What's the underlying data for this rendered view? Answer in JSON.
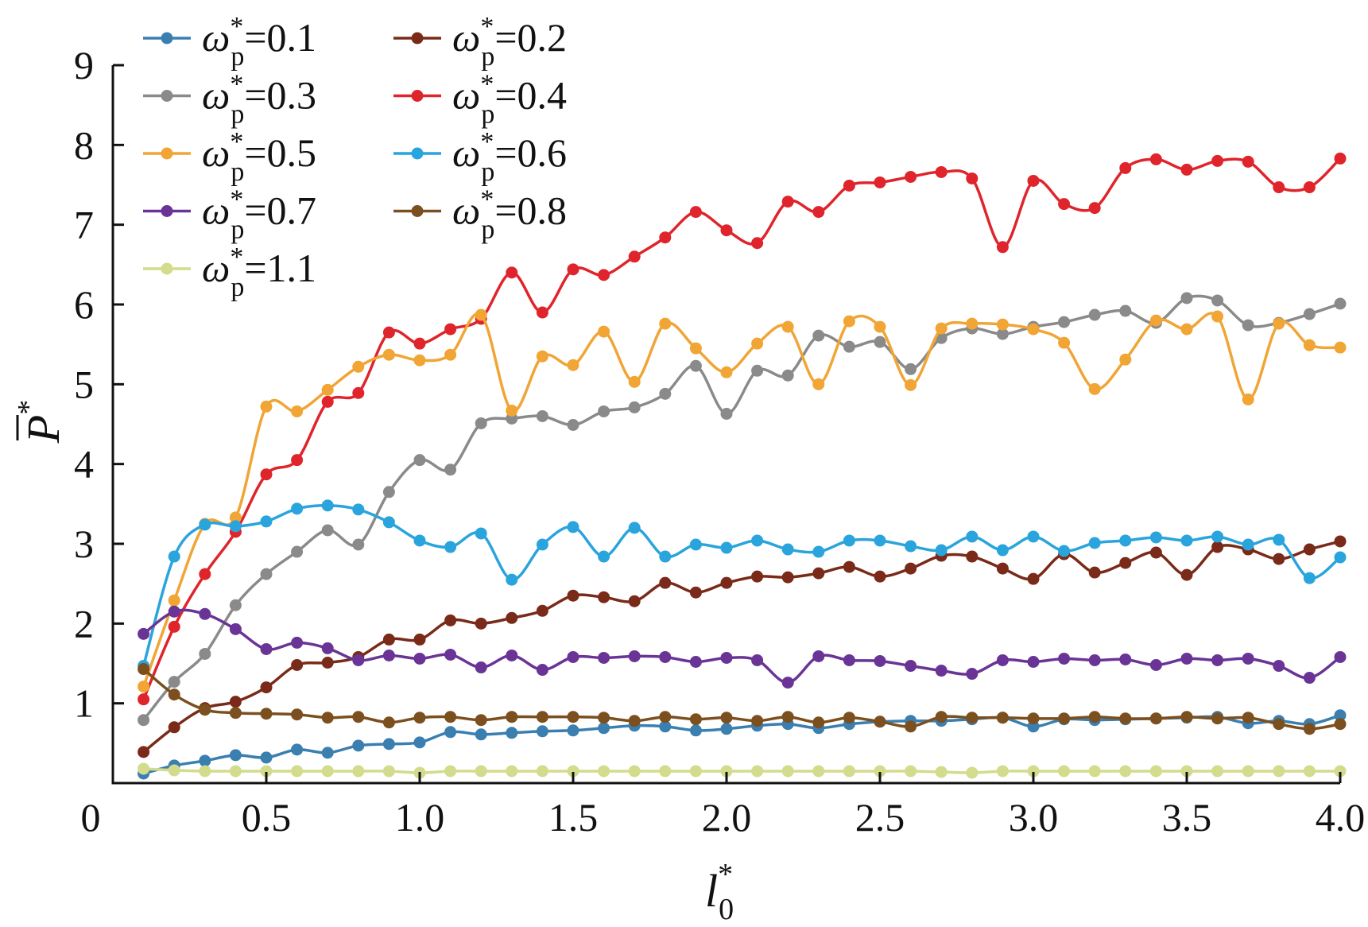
{
  "chart_data": {
    "type": "line",
    "xlabel": "l",
    "xlabel_sup": "*",
    "xlabel_sub": "0",
    "ylabel": "P",
    "ylabel_sup": "*",
    "xlim": [
      0,
      4.0
    ],
    "ylim": [
      0,
      9
    ],
    "xticks": [
      0,
      0.5,
      1.0,
      1.5,
      2.0,
      2.5,
      3.0,
      3.5,
      4.0
    ],
    "xtick_labels": [
      "0",
      "0.5",
      "1.0",
      "1.5",
      "2.0",
      "2.5",
      "3.0",
      "3.5",
      "4.0"
    ],
    "yticks": [
      1,
      2,
      3,
      4,
      5,
      6,
      7,
      8,
      9
    ],
    "ytick_labels": [
      "1",
      "2",
      "3",
      "4",
      "5",
      "6",
      "7",
      "8",
      "9"
    ],
    "grid": false,
    "legend_position": "top-left",
    "x": [
      0.1,
      0.2,
      0.3,
      0.4,
      0.5,
      0.6,
      0.7,
      0.8,
      0.9,
      1.0,
      1.1,
      1.2,
      1.3,
      1.4,
      1.5,
      1.6,
      1.7,
      1.8,
      1.9,
      2.0,
      2.1,
      2.2,
      2.3,
      2.4,
      2.5,
      2.6,
      2.7,
      2.8,
      2.9,
      3.0,
      3.1,
      3.2,
      3.3,
      3.4,
      3.5,
      3.6,
      3.7,
      3.8,
      3.9,
      4.0
    ],
    "series": [
      {
        "name": "ωp*=0.1",
        "legend_omega": "ω",
        "legend_sub": "p",
        "legend_sup": "*",
        "legend_value": "=0.1",
        "color": "#3a7fb0",
        "values": [
          0.12,
          0.22,
          0.28,
          0.35,
          0.32,
          0.42,
          0.38,
          0.47,
          0.49,
          0.51,
          0.64,
          0.61,
          0.63,
          0.65,
          0.66,
          0.69,
          0.72,
          0.71,
          0.66,
          0.68,
          0.72,
          0.74,
          0.69,
          0.74,
          0.77,
          0.78,
          0.78,
          0.8,
          0.82,
          0.71,
          0.8,
          0.79,
          0.8,
          0.81,
          0.82,
          0.83,
          0.75,
          0.78,
          0.74,
          0.85
        ]
      },
      {
        "name": "ωp*=0.2",
        "legend_omega": "ω",
        "legend_sub": "p",
        "legend_sup": "*",
        "legend_value": "=0.2",
        "color": "#7a2a18",
        "values": [
          0.39,
          0.7,
          0.94,
          1.02,
          1.2,
          1.48,
          1.51,
          1.58,
          1.8,
          1.8,
          2.04,
          2.0,
          2.07,
          2.16,
          2.35,
          2.33,
          2.28,
          2.51,
          2.39,
          2.51,
          2.59,
          2.58,
          2.63,
          2.71,
          2.59,
          2.69,
          2.85,
          2.84,
          2.69,
          2.56,
          2.87,
          2.64,
          2.76,
          2.89,
          2.61,
          2.96,
          2.93,
          2.81,
          2.93,
          3.03
        ]
      },
      {
        "name": "ωp*=0.3",
        "legend_omega": "ω",
        "legend_sub": "p",
        "legend_sup": "*",
        "legend_value": "=0.3",
        "color": "#8a8a8a",
        "values": [
          0.79,
          1.27,
          1.62,
          2.23,
          2.62,
          2.9,
          3.17,
          2.99,
          3.65,
          4.05,
          3.93,
          4.51,
          4.57,
          4.6,
          4.49,
          4.66,
          4.71,
          4.88,
          5.23,
          4.63,
          5.17,
          5.11,
          5.61,
          5.47,
          5.53,
          5.19,
          5.58,
          5.7,
          5.63,
          5.72,
          5.78,
          5.87,
          5.92,
          5.77,
          6.08,
          6.05,
          5.74,
          5.77,
          5.88,
          6.01
        ]
      },
      {
        "name": "ωp*=0.4",
        "legend_omega": "ω",
        "legend_sub": "p",
        "legend_sup": "*",
        "legend_value": "=0.4",
        "color": "#e0242b",
        "values": [
          1.05,
          1.96,
          2.62,
          3.15,
          3.87,
          4.05,
          4.78,
          4.89,
          5.65,
          5.51,
          5.69,
          5.82,
          6.4,
          5.9,
          6.44,
          6.37,
          6.6,
          6.84,
          7.16,
          6.93,
          6.77,
          7.29,
          7.16,
          7.49,
          7.53,
          7.6,
          7.66,
          7.58,
          6.72,
          7.55,
          7.26,
          7.21,
          7.71,
          7.82,
          7.69,
          7.8,
          7.79,
          7.47,
          7.47,
          7.83
        ]
      },
      {
        "name": "ωp*=0.5",
        "legend_omega": "ω",
        "legend_sub": "p",
        "legend_sup": "*",
        "legend_value": "=0.5",
        "color": "#f0a535",
        "values": [
          1.21,
          2.29,
          3.25,
          3.33,
          4.72,
          4.66,
          4.93,
          5.22,
          5.37,
          5.3,
          5.37,
          5.87,
          4.67,
          5.35,
          5.24,
          5.66,
          5.03,
          5.76,
          5.45,
          5.15,
          5.51,
          5.72,
          5.0,
          5.79,
          5.72,
          4.99,
          5.7,
          5.76,
          5.75,
          5.69,
          5.52,
          4.94,
          5.31,
          5.8,
          5.69,
          5.85,
          4.81,
          5.76,
          5.49,
          5.46
        ]
      },
      {
        "name": "ωp*=0.6",
        "legend_omega": "ω",
        "legend_sub": "p",
        "legend_sup": "*",
        "legend_value": "=0.6",
        "color": "#2aa4dc",
        "values": [
          1.47,
          2.84,
          3.24,
          3.22,
          3.28,
          3.44,
          3.48,
          3.43,
          3.27,
          3.04,
          2.96,
          3.13,
          2.55,
          2.99,
          3.21,
          2.84,
          3.2,
          2.84,
          2.99,
          2.95,
          3.04,
          2.93,
          2.9,
          3.04,
          3.04,
          2.97,
          2.92,
          3.09,
          2.92,
          3.09,
          2.91,
          3.01,
          3.04,
          3.08,
          3.04,
          3.09,
          2.99,
          3.05,
          2.57,
          2.83
        ]
      },
      {
        "name": "ωp*=0.7",
        "legend_omega": "ω",
        "legend_sub": "p",
        "legend_sup": "*",
        "legend_value": "=0.7",
        "color": "#6a3496",
        "values": [
          1.87,
          2.15,
          2.12,
          1.93,
          1.68,
          1.76,
          1.69,
          1.54,
          1.6,
          1.56,
          1.61,
          1.45,
          1.6,
          1.42,
          1.58,
          1.57,
          1.59,
          1.58,
          1.52,
          1.57,
          1.54,
          1.26,
          1.59,
          1.54,
          1.53,
          1.47,
          1.41,
          1.37,
          1.54,
          1.52,
          1.56,
          1.54,
          1.55,
          1.48,
          1.56,
          1.54,
          1.56,
          1.47,
          1.32,
          1.58
        ]
      },
      {
        "name": "ωp*=0.8",
        "legend_omega": "ω",
        "legend_sub": "p",
        "legend_sup": "*",
        "legend_value": "=0.8",
        "color": "#7c4f1e",
        "values": [
          1.43,
          1.11,
          0.92,
          0.88,
          0.87,
          0.86,
          0.82,
          0.83,
          0.76,
          0.82,
          0.83,
          0.79,
          0.83,
          0.83,
          0.83,
          0.82,
          0.78,
          0.83,
          0.8,
          0.82,
          0.78,
          0.83,
          0.76,
          0.82,
          0.77,
          0.71,
          0.83,
          0.82,
          0.82,
          0.81,
          0.81,
          0.83,
          0.81,
          0.81,
          0.83,
          0.81,
          0.82,
          0.74,
          0.68,
          0.74
        ]
      },
      {
        "name": "ωp*=1.1",
        "legend_omega": "ω",
        "legend_sub": "p",
        "legend_sup": "*",
        "legend_value": "=1.1",
        "color": "#d2dc8c",
        "values": [
          0.18,
          0.16,
          0.15,
          0.15,
          0.15,
          0.15,
          0.15,
          0.15,
          0.15,
          0.13,
          0.15,
          0.15,
          0.15,
          0.15,
          0.15,
          0.15,
          0.15,
          0.15,
          0.15,
          0.15,
          0.15,
          0.15,
          0.15,
          0.15,
          0.15,
          0.15,
          0.14,
          0.13,
          0.15,
          0.15,
          0.15,
          0.15,
          0.15,
          0.15,
          0.15,
          0.15,
          0.15,
          0.15,
          0.15,
          0.15
        ]
      }
    ]
  }
}
